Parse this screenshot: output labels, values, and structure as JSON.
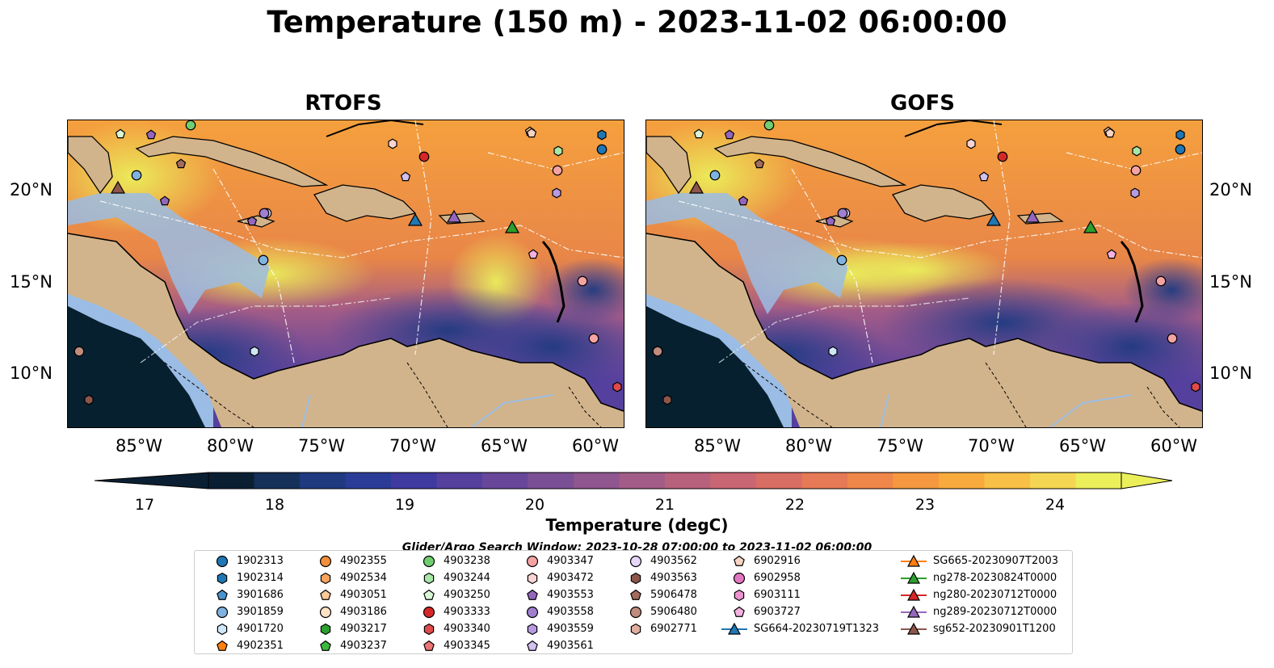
{
  "title": "Temperature (150 m) - 2023-11-02 06:00:00",
  "panels": [
    {
      "title": "RTOFS"
    },
    {
      "title": "GOFS"
    }
  ],
  "lat_labels": [
    "20°N",
    "15°N",
    "10°N"
  ],
  "lon_labels": [
    "85°W",
    "80°W",
    "75°W",
    "70°W",
    "65°W",
    "60°W"
  ],
  "colorbar": {
    "label": "Temperature (degC)",
    "ticks": [
      "17",
      "18",
      "19",
      "20",
      "21",
      "22",
      "23",
      "24"
    ],
    "colors": [
      "#0b1f33",
      "#15305a",
      "#1f3a80",
      "#2b3c98",
      "#3f3aa0",
      "#55409e",
      "#68479a",
      "#7b4f95",
      "#8f568f",
      "#a35c87",
      "#b7617d",
      "#c96673",
      "#d86d63",
      "#e67956",
      "#f0874a",
      "#f5983f",
      "#f8ab3c",
      "#f8c046",
      "#f5d652",
      "#ebef5a"
    ]
  },
  "search_window": "Glider/Argo Search Window: 2023-10-28 07:00:00 to 2023-11-02 06:00:00",
  "legend": {
    "columns": [
      [
        {
          "label": "1902313",
          "marker": "circle",
          "color": "#1f77b4"
        },
        {
          "label": "1902314",
          "marker": "hexagon",
          "color": "#1f77b4"
        },
        {
          "label": "3901686",
          "marker": "pentagon",
          "color": "#4a93cc"
        },
        {
          "label": "3901859",
          "marker": "circle",
          "color": "#7fb2e0"
        },
        {
          "label": "4901720",
          "marker": "hexagon",
          "color": "#cfe6f7"
        },
        {
          "label": "4902351",
          "marker": "pentagon",
          "color": "#ff7f0e"
        }
      ],
      [
        {
          "label": "4902355",
          "marker": "circle",
          "color": "#f28f3b"
        },
        {
          "label": "4902534",
          "marker": "hexagon",
          "color": "#f7a35c"
        },
        {
          "label": "4903051",
          "marker": "pentagon",
          "color": "#fbc896"
        },
        {
          "label": "4903186",
          "marker": "circle",
          "color": "#fde3c4"
        },
        {
          "label": "4903217",
          "marker": "hexagon",
          "color": "#2ca02c"
        },
        {
          "label": "4903237",
          "marker": "pentagon",
          "color": "#3cb83c"
        }
      ],
      [
        {
          "label": "4903238",
          "marker": "circle",
          "color": "#6fcf6f"
        },
        {
          "label": "4903244",
          "marker": "hexagon",
          "color": "#a6e6a6"
        },
        {
          "label": "4903250",
          "marker": "pentagon",
          "color": "#d9f7d6"
        },
        {
          "label": "4903333",
          "marker": "circle",
          "color": "#d62728"
        },
        {
          "label": "4903340",
          "marker": "hexagon",
          "color": "#e04a4a"
        },
        {
          "label": "4903345",
          "marker": "pentagon",
          "color": "#ec7474"
        }
      ],
      [
        {
          "label": "4903347",
          "marker": "circle",
          "color": "#f4a3a3"
        },
        {
          "label": "4903472",
          "marker": "hexagon",
          "color": "#fbd3d3"
        },
        {
          "label": "4903553",
          "marker": "pentagon",
          "color": "#9467bd"
        },
        {
          "label": "4903558",
          "marker": "circle",
          "color": "#a07fcf"
        },
        {
          "label": "4903559",
          "marker": "hexagon",
          "color": "#b79ae0"
        },
        {
          "label": "4903561",
          "marker": "pentagon",
          "color": "#d2c0f0"
        }
      ],
      [
        {
          "label": "4903562",
          "marker": "circle",
          "color": "#e6d6f9"
        },
        {
          "label": "4903563",
          "marker": "hexagon",
          "color": "#8c564b"
        },
        {
          "label": "5906478",
          "marker": "pentagon",
          "color": "#a36b5e"
        },
        {
          "label": "5906480",
          "marker": "circle",
          "color": "#bf8c7e"
        },
        {
          "label": "6902771",
          "marker": "hexagon",
          "color": "#e0ae9e"
        }
      ],
      [
        {
          "label": "6902916",
          "marker": "pentagon",
          "color": "#f7d3c3"
        },
        {
          "label": "6902958",
          "marker": "circle",
          "color": "#e377c2"
        },
        {
          "label": "6903111",
          "marker": "hexagon",
          "color": "#ec93d0"
        },
        {
          "label": "6903727",
          "marker": "pentagon",
          "color": "#f5b2e0"
        },
        {
          "label": "SG664-20230719T1323",
          "marker": "triangle-line",
          "color": "#1f77b4"
        }
      ],
      [
        {
          "label": "SG665-20230907T2003",
          "marker": "triangle-line",
          "color": "#ff7f0e"
        },
        {
          "label": "ng278-20230824T0000",
          "marker": "triangle-line",
          "color": "#2ca02c"
        },
        {
          "label": "ng280-20230712T0000",
          "marker": "triangle-line",
          "color": "#d62728"
        },
        {
          "label": "ng289-20230712T0000",
          "marker": "triangle-line",
          "color": "#9467bd"
        },
        {
          "label": "sg652-20230901T1200",
          "marker": "triangle-line",
          "color": "#8c564b"
        }
      ]
    ]
  }
}
